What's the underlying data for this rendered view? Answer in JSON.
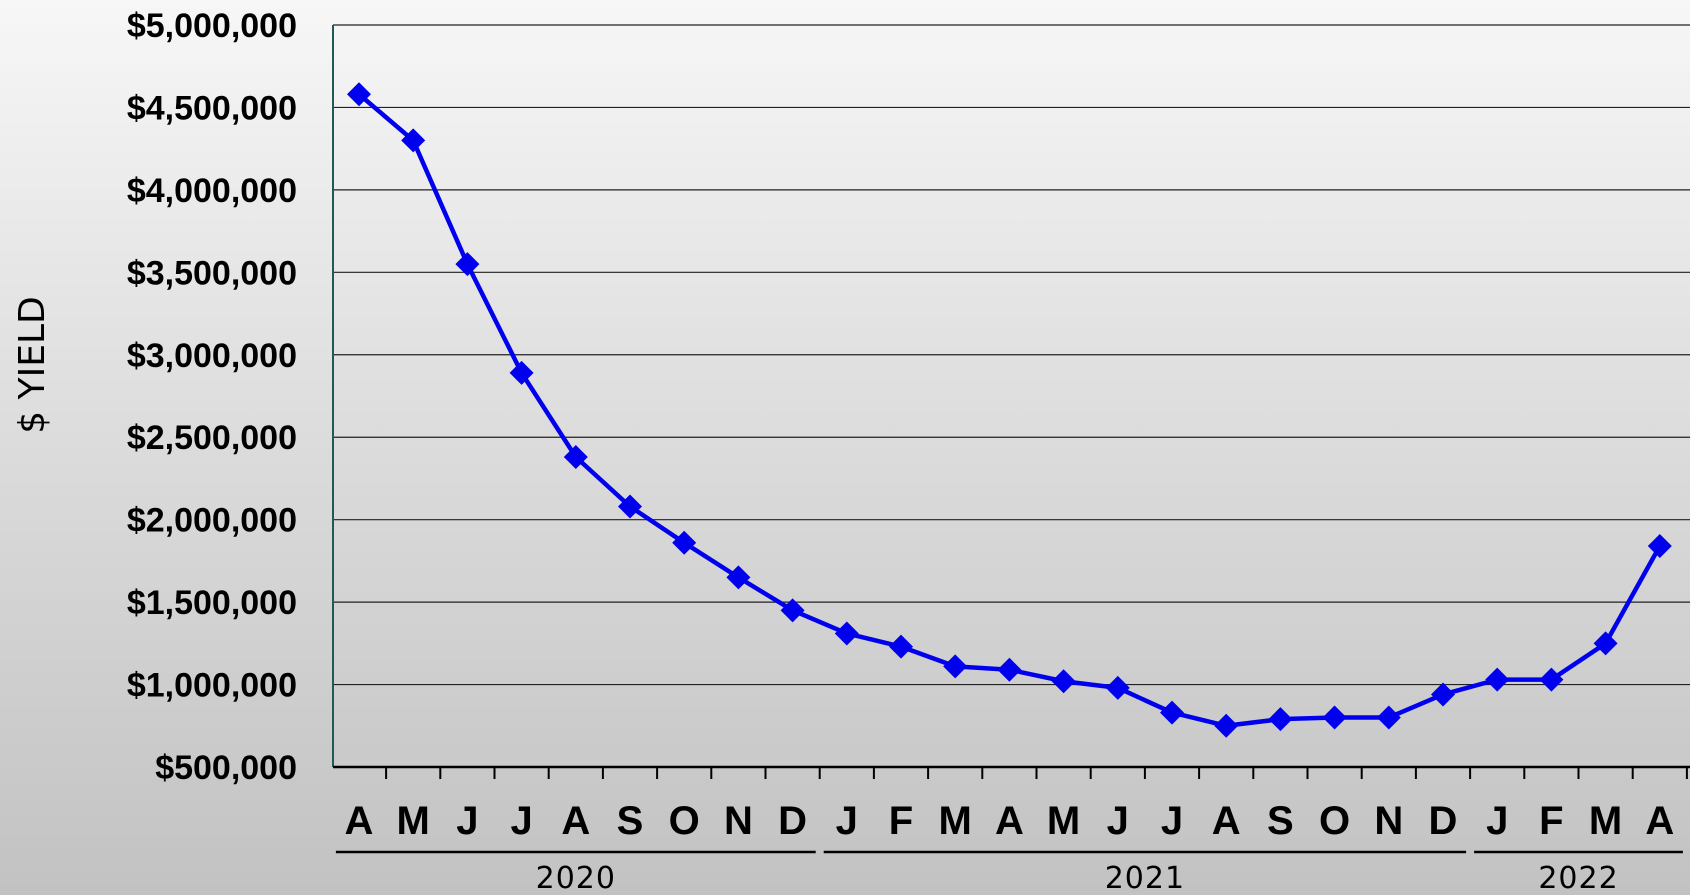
{
  "chart_data": {
    "type": "line",
    "ylabel": "$ YIELD",
    "ylim": [
      500000,
      5000000
    ],
    "yticks": [
      {
        "value": 500000,
        "label": "$500,000"
      },
      {
        "value": 1000000,
        "label": "$1,000,000"
      },
      {
        "value": 1500000,
        "label": "$1,500,000"
      },
      {
        "value": 2000000,
        "label": "$2,000,000"
      },
      {
        "value": 2500000,
        "label": "$2,500,000"
      },
      {
        "value": 3000000,
        "label": "$3,000,000"
      },
      {
        "value": 3500000,
        "label": "$3,500,000"
      },
      {
        "value": 4000000,
        "label": "$4,000,000"
      },
      {
        "value": 4500000,
        "label": "$4,500,000"
      },
      {
        "value": 5000000,
        "label": "$5,000,000"
      }
    ],
    "categories": [
      "A",
      "M",
      "J",
      "J",
      "A",
      "S",
      "O",
      "N",
      "D",
      "J",
      "F",
      "M",
      "A",
      "M",
      "J",
      "J",
      "A",
      "S",
      "O",
      "N",
      "D",
      "J",
      "F",
      "M",
      "A"
    ],
    "year_groups": [
      {
        "label": "2020",
        "start": 0,
        "end": 8
      },
      {
        "label": "2021",
        "start": 9,
        "end": 20
      },
      {
        "label": "2022",
        "start": 21,
        "end": 24
      }
    ],
    "series": [
      {
        "values": [
          4580000,
          4300000,
          3550000,
          2890000,
          2380000,
          2080000,
          1860000,
          1650000,
          1450000,
          1310000,
          1230000,
          1110000,
          1090000,
          1020000,
          980000,
          830000,
          750000,
          790000,
          800000,
          800000,
          940000,
          1030000,
          1030000,
          1250000,
          1840000
        ]
      }
    ],
    "grid": true,
    "colors": {
      "line": "#0000ee",
      "grid": "#222222"
    }
  }
}
